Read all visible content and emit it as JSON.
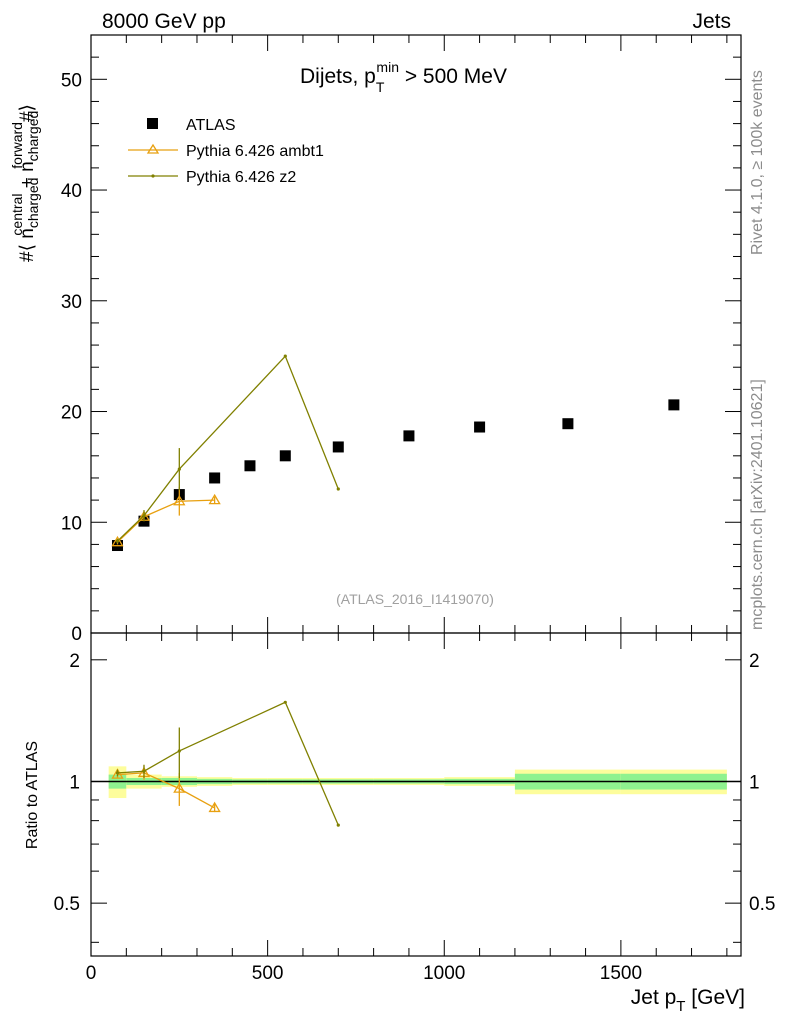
{
  "header": {
    "left_label": "8000 GeV pp",
    "right_label": "Jets"
  },
  "side_labels": {
    "rivet": "Rivet 4.1.0, ≥ 100k events",
    "source": "mcplots.cern.ch [arXiv:2401.10621]"
  },
  "chart_data": [
    {
      "type": "scatter",
      "panel": "main",
      "title_main": "Dijets, p",
      "title_sup": "min",
      "title_sub": "T",
      "title_tail": " > 500 MeV",
      "ylabel": "#⟨ n^central_charged + n^forward_charged #⟩",
      "ylabel_parts": {
        "pre": "#⟨ n",
        "sup1": "central",
        "sub1": "charged",
        "mid": " + n",
        "sup2": "forward",
        "sub2": "charged",
        "post": "#⟩"
      },
      "analysis_tag": "(ATLAS_2016_I1419070)",
      "xlim": [
        0,
        1840
      ],
      "ylim": [
        0,
        54
      ],
      "y_ticks": [
        0,
        10,
        20,
        30,
        40,
        50
      ],
      "y_tick_labels": [
        "0",
        "10",
        "20",
        "30",
        "40",
        "50"
      ],
      "legend_position": "top-left",
      "series": [
        {
          "name": "ATLAS",
          "style": "markers",
          "color": "#000000",
          "x": [
            75,
            150,
            250,
            350,
            450,
            550,
            700,
            900,
            1100,
            1350,
            1650
          ],
          "y": [
            7.9,
            10.1,
            12.5,
            14.0,
            15.1,
            16.0,
            16.8,
            17.8,
            18.6,
            18.9,
            20.6
          ]
        },
        {
          "name": "Pythia 6.426 ambt1",
          "style": "line-triangle",
          "color": "#e8a010",
          "x": [
            75,
            150,
            250,
            350
          ],
          "y": [
            8.2,
            10.5,
            11.9,
            12.0
          ],
          "err": [
            0.2,
            0.4,
            1.3,
            0.3
          ]
        },
        {
          "name": "Pythia 6.426 z2",
          "style": "line-dot",
          "color": "#808000",
          "x": [
            75,
            150,
            250,
            550,
            700
          ],
          "y": [
            8.3,
            10.6,
            14.8,
            25.0,
            13.0
          ],
          "err": [
            0.2,
            0.5,
            1.9,
            0.0,
            0.0
          ]
        }
      ]
    },
    {
      "type": "scatter",
      "panel": "ratio",
      "ylabel": "Ratio to ATLAS",
      "xlabel_main": "Jet p",
      "xlabel_sub": "T",
      "xlabel_tail": " [GeV]",
      "xlim": [
        0,
        1840
      ],
      "ylim": [
        0.37,
        2.33
      ],
      "x_ticks": [
        0,
        500,
        1000,
        1500
      ],
      "x_tick_labels": [
        "0",
        "500",
        "1000",
        "1500"
      ],
      "y_ticks": [
        0.5,
        1,
        2
      ],
      "y_tick_labels": [
        "0.5",
        "1",
        "2"
      ],
      "reference_line": 1,
      "bins": [
        {
          "lo": 50,
          "hi": 100,
          "stat": 0.04,
          "tot": 0.09
        },
        {
          "lo": 100,
          "hi": 200,
          "stat": 0.02,
          "tot": 0.04
        },
        {
          "lo": 200,
          "hi": 300,
          "stat": 0.02,
          "tot": 0.03
        },
        {
          "lo": 300,
          "hi": 400,
          "stat": 0.015,
          "tot": 0.025
        },
        {
          "lo": 400,
          "hi": 500,
          "stat": 0.012,
          "tot": 0.02
        },
        {
          "lo": 500,
          "hi": 600,
          "stat": 0.012,
          "tot": 0.02
        },
        {
          "lo": 600,
          "hi": 800,
          "stat": 0.012,
          "tot": 0.02
        },
        {
          "lo": 800,
          "hi": 1000,
          "stat": 0.012,
          "tot": 0.02
        },
        {
          "lo": 1000,
          "hi": 1200,
          "stat": 0.015,
          "tot": 0.025
        },
        {
          "lo": 1200,
          "hi": 1500,
          "stat": 0.045,
          "tot": 0.07
        },
        {
          "lo": 1500,
          "hi": 1800,
          "stat": 0.045,
          "tot": 0.07
        }
      ],
      "series": [
        {
          "name": "Pythia 6.426 ambt1",
          "color": "#e8a010",
          "x": [
            75,
            150,
            250,
            350
          ],
          "y": [
            1.04,
            1.05,
            0.96,
            0.86
          ],
          "err": [
            0.02,
            0.04,
            0.09,
            0.02
          ]
        },
        {
          "name": "Pythia 6.426 z2",
          "color": "#808000",
          "x": [
            75,
            150,
            250,
            550,
            700
          ],
          "y": [
            1.05,
            1.06,
            1.19,
            1.57,
            0.78
          ],
          "err": [
            0.02,
            0.04,
            0.17,
            0.0,
            0.0
          ]
        }
      ]
    }
  ]
}
